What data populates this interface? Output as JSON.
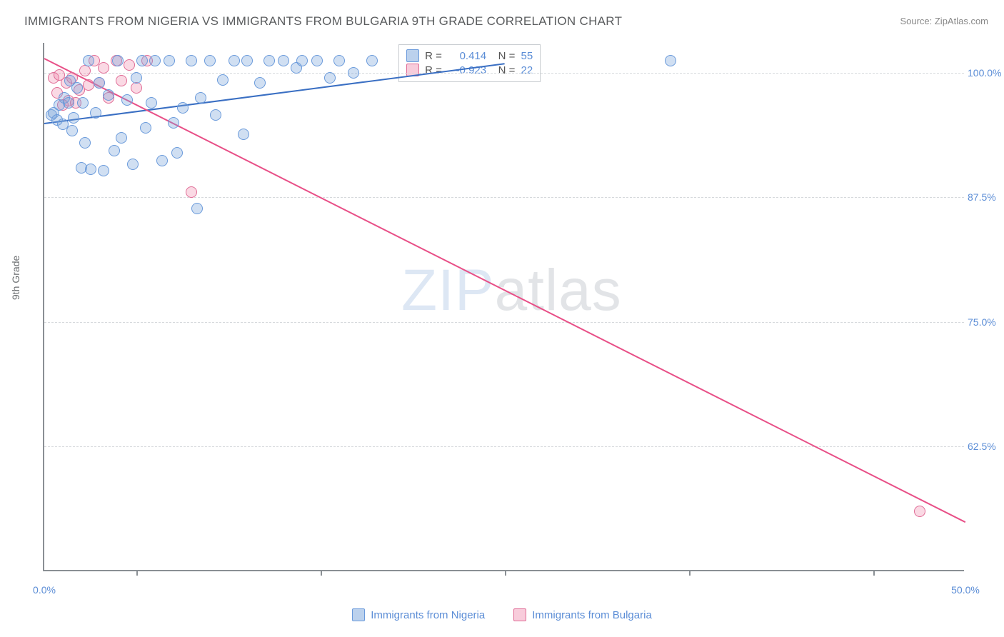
{
  "title": "IMMIGRANTS FROM NIGERIA VS IMMIGRANTS FROM BULGARIA 9TH GRADE CORRELATION CHART",
  "source": "Source: ZipAtlas.com",
  "yaxis_title": "9th Grade",
  "watermark": {
    "zip": "ZIP",
    "atlas": "atlas"
  },
  "chart": {
    "type": "scatter",
    "xlim": [
      0,
      50
    ],
    "ylim": [
      50,
      103
    ],
    "xtick_labels": [
      {
        "x": 0,
        "label": "0.0%"
      },
      {
        "x": 50,
        "label": "50.0%"
      }
    ],
    "xticks_minor": [
      5,
      15,
      25,
      35,
      45
    ],
    "ytick_labels": [
      {
        "y": 62.5,
        "label": "62.5%"
      },
      {
        "y": 75.0,
        "label": "75.0%"
      },
      {
        "y": 87.5,
        "label": "87.5%"
      },
      {
        "y": 100.0,
        "label": "100.0%"
      }
    ],
    "grid_color": "#d6d9dc",
    "axis_color": "#8a8f94",
    "background": "#ffffff",
    "marker_size": 16,
    "series": [
      {
        "name": "Immigrants from Nigeria",
        "color_fill": "rgba(120,163,219,0.35)",
        "color_stroke": "#6a9adb",
        "trend_color": "#3a6fc3",
        "R": "0.414",
        "R_prefix": "",
        "N": "55",
        "trend": {
          "x1": 0,
          "y1": 95.0,
          "x2": 25,
          "y2": 101.0
        },
        "points": [
          {
            "x": 0.4,
            "y": 95.8
          },
          {
            "x": 0.5,
            "y": 96.0
          },
          {
            "x": 0.7,
            "y": 95.3
          },
          {
            "x": 0.8,
            "y": 96.8
          },
          {
            "x": 1.0,
            "y": 94.8
          },
          {
            "x": 1.1,
            "y": 97.5
          },
          {
            "x": 1.3,
            "y": 97.0
          },
          {
            "x": 1.4,
            "y": 99.2
          },
          {
            "x": 1.5,
            "y": 94.2
          },
          {
            "x": 1.6,
            "y": 95.5
          },
          {
            "x": 1.8,
            "y": 98.5
          },
          {
            "x": 2.0,
            "y": 90.5
          },
          {
            "x": 2.1,
            "y": 97.0
          },
          {
            "x": 2.2,
            "y": 93.0
          },
          {
            "x": 2.4,
            "y": 101.2
          },
          {
            "x": 2.5,
            "y": 90.3
          },
          {
            "x": 2.8,
            "y": 96.0
          },
          {
            "x": 3.0,
            "y": 99.0
          },
          {
            "x": 3.2,
            "y": 90.2
          },
          {
            "x": 3.5,
            "y": 97.8
          },
          {
            "x": 3.8,
            "y": 92.2
          },
          {
            "x": 4.0,
            "y": 101.2
          },
          {
            "x": 4.2,
            "y": 93.5
          },
          {
            "x": 4.5,
            "y": 97.3
          },
          {
            "x": 4.8,
            "y": 90.8
          },
          {
            "x": 5.0,
            "y": 99.5
          },
          {
            "x": 5.3,
            "y": 101.2
          },
          {
            "x": 5.5,
            "y": 94.5
          },
          {
            "x": 5.8,
            "y": 97.0
          },
          {
            "x": 6.0,
            "y": 101.2
          },
          {
            "x": 6.4,
            "y": 91.2
          },
          {
            "x": 6.8,
            "y": 101.2
          },
          {
            "x": 7.0,
            "y": 95.0
          },
          {
            "x": 7.2,
            "y": 92.0
          },
          {
            "x": 7.5,
            "y": 96.5
          },
          {
            "x": 8.0,
            "y": 101.2
          },
          {
            "x": 8.3,
            "y": 86.4
          },
          {
            "x": 8.5,
            "y": 97.5
          },
          {
            "x": 9.0,
            "y": 101.2
          },
          {
            "x": 9.3,
            "y": 95.8
          },
          {
            "x": 9.7,
            "y": 99.3
          },
          {
            "x": 10.3,
            "y": 101.2
          },
          {
            "x": 10.8,
            "y": 93.8
          },
          {
            "x": 11.0,
            "y": 101.2
          },
          {
            "x": 11.7,
            "y": 99.0
          },
          {
            "x": 12.2,
            "y": 101.2
          },
          {
            "x": 13.0,
            "y": 101.2
          },
          {
            "x": 13.7,
            "y": 100.5
          },
          {
            "x": 14.0,
            "y": 101.2
          },
          {
            "x": 14.8,
            "y": 101.2
          },
          {
            "x": 15.5,
            "y": 99.5
          },
          {
            "x": 16.0,
            "y": 101.2
          },
          {
            "x": 16.8,
            "y": 100.0
          },
          {
            "x": 17.8,
            "y": 101.2
          },
          {
            "x": 34.0,
            "y": 101.2
          }
        ]
      },
      {
        "name": "Immigrants from Bulgaria",
        "color_fill": "rgba(237,128,165,0.30)",
        "color_stroke": "#e06c96",
        "trend_color": "#e84f87",
        "R": "-0.923",
        "R_prefix": "",
        "N": "22",
        "trend": {
          "x1": 0,
          "y1": 101.5,
          "x2": 50,
          "y2": 55.0
        },
        "points": [
          {
            "x": 0.5,
            "y": 99.5
          },
          {
            "x": 0.7,
            "y": 98.0
          },
          {
            "x": 0.8,
            "y": 99.8
          },
          {
            "x": 1.0,
            "y": 96.8
          },
          {
            "x": 1.2,
            "y": 99.0
          },
          {
            "x": 1.3,
            "y": 97.2
          },
          {
            "x": 1.5,
            "y": 99.5
          },
          {
            "x": 1.7,
            "y": 97.0
          },
          {
            "x": 1.9,
            "y": 98.3
          },
          {
            "x": 2.2,
            "y": 100.2
          },
          {
            "x": 2.4,
            "y": 98.8
          },
          {
            "x": 2.7,
            "y": 101.2
          },
          {
            "x": 3.0,
            "y": 99.0
          },
          {
            "x": 3.2,
            "y": 100.5
          },
          {
            "x": 3.5,
            "y": 97.5
          },
          {
            "x": 3.9,
            "y": 101.2
          },
          {
            "x": 4.2,
            "y": 99.2
          },
          {
            "x": 4.6,
            "y": 100.8
          },
          {
            "x": 5.0,
            "y": 98.5
          },
          {
            "x": 5.6,
            "y": 101.2
          },
          {
            "x": 8.0,
            "y": 88.0
          },
          {
            "x": 47.5,
            "y": 56.0
          }
        ]
      }
    ]
  },
  "legend_bottom": [
    {
      "swatch": "blue",
      "label": "Immigrants from Nigeria"
    },
    {
      "swatch": "pink",
      "label": "Immigrants from Bulgaria"
    }
  ]
}
